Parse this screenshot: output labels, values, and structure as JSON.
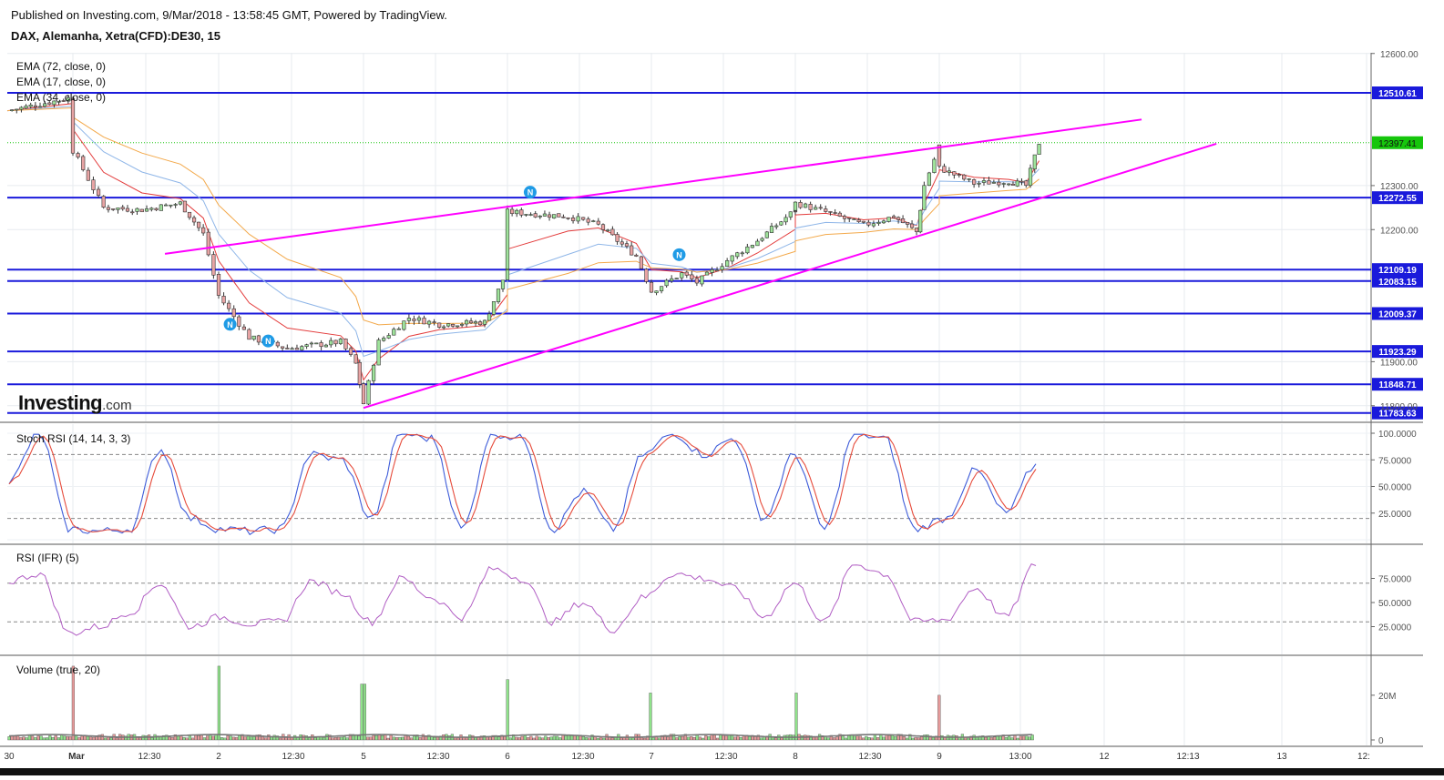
{
  "header": {
    "published": "Published on Investing.com, 9/Mar/2018 - 13:58:45 GMT, Powered by TradingView.",
    "symbol": "DAX, Alemanha, Xetra(CFD):DE30, 15"
  },
  "logo": {
    "main": "Investing",
    "suffix": ".com"
  },
  "panels": {
    "price": {
      "ema_labels": [
        "EMA (72, close, 0)",
        "EMA (17, close, 0)",
        "EMA (34, close, 0)"
      ],
      "y_ticks": [
        "12600.00",
        "12300.00",
        "12200.00",
        "11900.00",
        "11800.00"
      ],
      "ylim": [
        11783,
        12600
      ],
      "horizontal_levels": [
        {
          "value": 12510.61,
          "label": "12510.61"
        },
        {
          "value": 12272.55,
          "label": "12272.55"
        },
        {
          "value": 12109.19,
          "label": "12109.19"
        },
        {
          "value": 12083.15,
          "label": "12083.15"
        },
        {
          "value": 12009.37,
          "label": "12009.37"
        },
        {
          "value": 11923.29,
          "label": "11923.29"
        },
        {
          "value": 11848.71,
          "label": "11848.71"
        },
        {
          "value": 11783.63,
          "label": "11783.63"
        }
      ],
      "last_price": {
        "value": 12397.41,
        "label": "12397.41"
      },
      "level_color": "#1a1adb",
      "trendline_color": "#ff00ff",
      "last_price_color": "#16c60c",
      "news_marker": "N"
    },
    "stoch": {
      "label": "Stoch RSI (14, 14, 3, 3)",
      "y_ticks": [
        "100.0000",
        "75.0000",
        "50.0000",
        "25.0000"
      ],
      "bands": [
        80,
        20
      ]
    },
    "rsi": {
      "label": "RSI (IFR) (5)",
      "y_ticks": [
        "75.0000",
        "50.0000",
        "25.0000"
      ],
      "bands": [
        70,
        30
      ]
    },
    "volume": {
      "label": "Volume (true, 20)",
      "y_ticks": [
        "20M",
        "0"
      ]
    }
  },
  "x_axis": {
    "labels": [
      "30",
      "Mar",
      "12:30",
      "2",
      "12:30",
      "5",
      "12:30",
      "6",
      "12:30",
      "7",
      "12:30",
      "8",
      "12:30",
      "9",
      "13:00",
      "12",
      "12:13",
      "13",
      "12:"
    ]
  },
  "chart_data": {
    "type": "candlestick",
    "symbol": "DAX, Alemanha, Xetra(CFD):DE30, 15",
    "ylim": [
      11783,
      12600
    ],
    "horizontal_levels": [
      12510.61,
      12272.55,
      12109.19,
      12083.15,
      12009.37,
      11923.29,
      11848.71,
      11783.63
    ],
    "last_price": 12397.41,
    "close_path": [
      {
        "x": "Feb 28",
        "y": 12470
      },
      {
        "x": "Mar 1 open",
        "y": 12500
      },
      {
        "x": "Mar 1 08:00",
        "y": 12380
      },
      {
        "x": "Mar 1 10:00",
        "y": 12250
      },
      {
        "x": "Mar 1 12:30",
        "y": 12245
      },
      {
        "x": "Mar 1 15:00",
        "y": 12260
      },
      {
        "x": "Mar 1 16:30",
        "y": 12190
      },
      {
        "x": "Mar 2 open",
        "y": 12050
      },
      {
        "x": "Mar 2 10:00",
        "y": 11955
      },
      {
        "x": "Mar 2 12:30",
        "y": 11930
      },
      {
        "x": "Mar 2 16:00",
        "y": 11945
      },
      {
        "x": "Mar 2 17:00",
        "y": 11895
      },
      {
        "x": "Mar 5 open",
        "y": 11805
      },
      {
        "x": "Mar 5 09:00",
        "y": 11945
      },
      {
        "x": "Mar 5 11:00",
        "y": 12000
      },
      {
        "x": "Mar 5 13:00",
        "y": 11985
      },
      {
        "x": "Mar 5 16:00",
        "y": 11990
      },
      {
        "x": "Mar 5 17:30",
        "y": 12110
      },
      {
        "x": "Mar 6 open",
        "y": 12240
      },
      {
        "x": "Mar 6 12:00",
        "y": 12230
      },
      {
        "x": "Mar 6 14:00",
        "y": 12210
      },
      {
        "x": "Mar 6 16:30",
        "y": 12140
      },
      {
        "x": "Mar 7 open",
        "y": 12060
      },
      {
        "x": "Mar 7 10:00",
        "y": 12100
      },
      {
        "x": "Mar 7 11:00",
        "y": 12080
      },
      {
        "x": "Mar 7 13:00",
        "y": 12130
      },
      {
        "x": "Mar 7 15:00",
        "y": 12175
      },
      {
        "x": "Mar 7 17:30",
        "y": 12245
      },
      {
        "x": "Mar 8 open",
        "y": 12260
      },
      {
        "x": "Mar 8 10:00",
        "y": 12240
      },
      {
        "x": "Mar 8 12:30",
        "y": 12210
      },
      {
        "x": "Mar 8 14:30",
        "y": 12230
      },
      {
        "x": "Mar 8 16:00",
        "y": 12195
      },
      {
        "x": "Mar 8 16:30",
        "y": 12300
      },
      {
        "x": "Mar 8 17:30",
        "y": 12390
      },
      {
        "x": "Mar 9 08:00",
        "y": 12340
      },
      {
        "x": "Mar 9 10:00",
        "y": 12305
      },
      {
        "x": "Mar 9 12:00",
        "y": 12310
      },
      {
        "x": "Mar 9 13:00",
        "y": 12300
      },
      {
        "x": "Mar 9 13:45",
        "y": 12397.41
      }
    ],
    "trendlines": [
      {
        "name": "upper",
        "points": [
          {
            "x": "Mar 1 14:00",
            "y": 12145
          },
          {
            "x": "Mar 12 10:00",
            "y": 12450
          }
        ]
      },
      {
        "name": "lower",
        "points": [
          {
            "x": "Mar 5 open",
            "y": 11795
          },
          {
            "x": "Mar 12 14:00",
            "y": 12395
          }
        ]
      }
    ],
    "stoch_rsi": {
      "label": "Stoch RSI (14, 14, 3, 3)",
      "ylim": [
        0,
        100
      ],
      "bands": [
        80,
        20
      ],
      "k": [
        55,
        100,
        10,
        8,
        10,
        85,
        20,
        10,
        8,
        10,
        80,
        75,
        20,
        100,
        95,
        10,
        100,
        95,
        10,
        45,
        10,
        80,
        100,
        80,
        95,
        20,
        80,
        10,
        100,
        95,
        10,
        20,
        65,
        25,
        70
      ]
    },
    "rsi": {
      "label": "RSI (IFR) (5)",
      "ylim": [
        0,
        100
      ],
      "bands": [
        70,
        30
      ],
      "values": [
        72,
        80,
        18,
        25,
        40,
        70,
        25,
        35,
        28,
        30,
        72,
        60,
        30,
        75,
        55,
        35,
        85,
        75,
        30,
        50,
        22,
        55,
        80,
        75,
        65,
        35,
        70,
        30,
        90,
        80,
        30,
        32,
        65,
        35,
        90
      ]
    },
    "volume": {
      "label": "Volume (true, 20)",
      "unit": "M",
      "ylim": [
        0,
        35
      ],
      "spikes": [
        {
          "x": "Mar 1 open",
          "y": 33
        },
        {
          "x": "Mar 2 open",
          "y": 33
        },
        {
          "x": "Mar 5 open",
          "y": 25
        },
        {
          "x": "Mar 6 open",
          "y": 27
        },
        {
          "x": "Mar 7 open",
          "y": 21
        },
        {
          "x": "Mar 8 open",
          "y": 21
        },
        {
          "x": "Mar 9 open",
          "y": 20
        }
      ],
      "baseline": 2
    }
  }
}
